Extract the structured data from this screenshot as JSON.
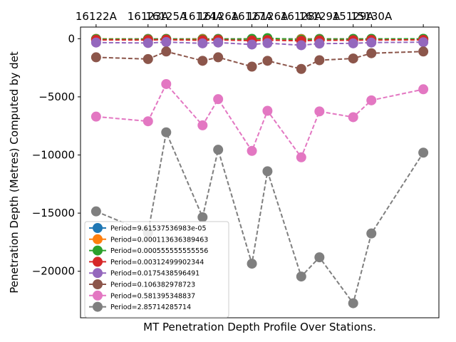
{
  "chart_data": {
    "type": "line",
    "title": "",
    "xlabel": "MT Penetration Depth Profile Over Stations.",
    "ylabel": "Penetration Depth (Metres) Computed by det",
    "categories": [
      "16122A",
      "16123A",
      "16125A",
      "16124A",
      "16126A",
      "16127A",
      "16126A",
      "16128A",
      "16129A",
      "15129A",
      "15130A"
    ],
    "x": [
      0,
      1,
      1.35,
      2.05,
      2.35,
      3.0,
      3.3,
      3.95,
      4.3,
      4.95,
      5.3,
      6.3
    ],
    "x_tick_positions": [
      0,
      1,
      1.35,
      2.05,
      2.35,
      3.0,
      3.3,
      3.95,
      4.3,
      4.95,
      5.3,
      6.3
    ],
    "x_tick_labels": [
      "16122A",
      "16123A",
      "16125A",
      "16124A",
      "16126A",
      "16127A",
      "16126A",
      "16128A",
      "16129A",
      "15129A",
      "15130A",
      ""
    ],
    "xlim": [
      -0.3,
      6.6
    ],
    "ylim": [
      -24000,
      1000
    ],
    "y_ticks": [
      0,
      -5000,
      -10000,
      -15000,
      -20000
    ],
    "y_tick_labels": [
      "0",
      "−5000",
      "−10000",
      "−15000",
      "−20000"
    ],
    "grid": false,
    "legend_position": "lower-left",
    "series": [
      {
        "name": "Period=9.61537536983e-05",
        "color": "#1f77b4",
        "values": [
          -10,
          -12,
          -11,
          -13,
          -12,
          -14,
          -13,
          -15,
          -14,
          -13,
          -12,
          -11
        ]
      },
      {
        "name": "Period=0.000113636389463",
        "color": "#ff7f0e",
        "values": [
          -20,
          -25,
          -22,
          -28,
          -24,
          -30,
          -26,
          -33,
          -28,
          -27,
          -24,
          -22
        ]
      },
      {
        "name": "Period=0.000555555555556",
        "color": "#2ca02c",
        "values": [
          -40,
          -50,
          -35,
          -70,
          -45,
          -20,
          50,
          -90,
          -40,
          -30,
          -20,
          -10
        ]
      },
      {
        "name": "Period=0.00312499902344",
        "color": "#d62728",
        "values": [
          -100,
          -110,
          -90,
          -130,
          -100,
          -160,
          -120,
          -180,
          -140,
          -130,
          -110,
          -100
        ]
      },
      {
        "name": "Period=0.0175438596491",
        "color": "#9467bd",
        "values": [
          -330,
          -370,
          -290,
          -400,
          -330,
          -500,
          -380,
          -560,
          -420,
          -400,
          -330,
          -300
        ]
      },
      {
        "name": "Period=0.106382978723",
        "color": "#8c564b",
        "values": [
          -1600,
          -1750,
          -1100,
          -1900,
          -1600,
          -2400,
          -1900,
          -2600,
          -1850,
          -1700,
          -1250,
          -1100
        ]
      },
      {
        "name": "Period=0.581395348837",
        "color": "#e377c2",
        "values": [
          -6700,
          -7100,
          -3900,
          -7450,
          -5200,
          -9650,
          -6200,
          -10200,
          -6250,
          -6750,
          -5300,
          -4350
        ]
      },
      {
        "name": "Period=2.85714285714",
        "color": "#7f7f7f",
        "values": [
          -14850,
          -16700,
          -8050,
          -15350,
          -9550,
          -19350,
          -11400,
          -20450,
          -18800,
          -22750,
          -16750,
          -9800
        ]
      }
    ]
  }
}
